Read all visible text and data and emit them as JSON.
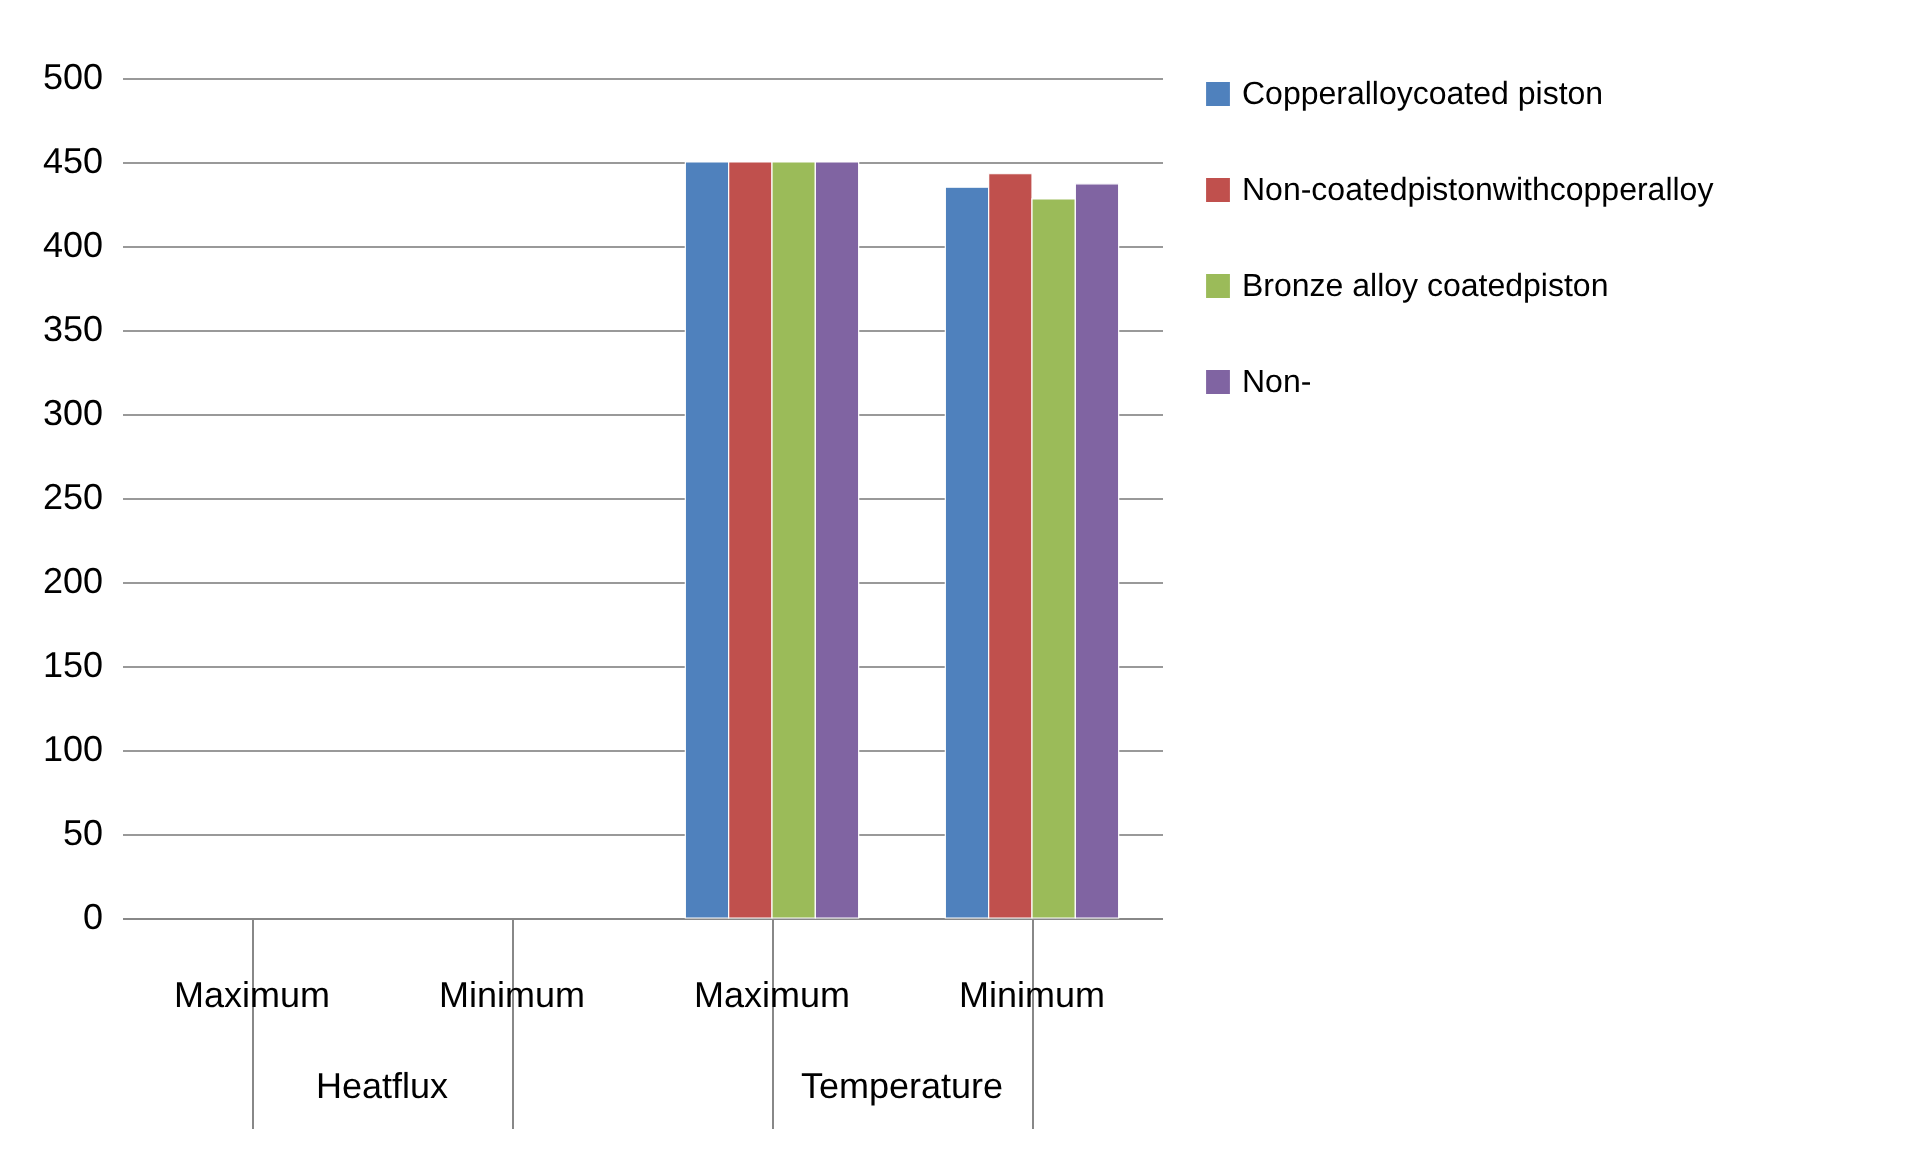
{
  "chart_data": {
    "type": "bar",
    "categories": [
      "Maximum",
      "Minimum",
      "Maximum",
      "Minimum"
    ],
    "annotations": [
      "Heatflux",
      "Temperature"
    ],
    "series": [
      {
        "name": "Copperalloycoated piston",
        "color": "#4f81bd",
        "values": [
          null,
          null,
          450,
          435
        ]
      },
      {
        "name": "Non-coatedpistonwithcopperalloy",
        "color": "#c0504d",
        "values": [
          null,
          null,
          450,
          443
        ]
      },
      {
        "name": "Bronze alloy coatedpiston",
        "color": "#9bbb59",
        "values": [
          null,
          null,
          450,
          428
        ]
      },
      {
        "name": "Non-",
        "color": "#8064a2",
        "values": [
          null,
          null,
          450,
          437
        ]
      }
    ],
    "ylim": [
      0,
      500
    ],
    "yticks": [
      0,
      50,
      100,
      150,
      200,
      250,
      300,
      350,
      400,
      450,
      500
    ],
    "grid": "y",
    "legend": "right"
  }
}
